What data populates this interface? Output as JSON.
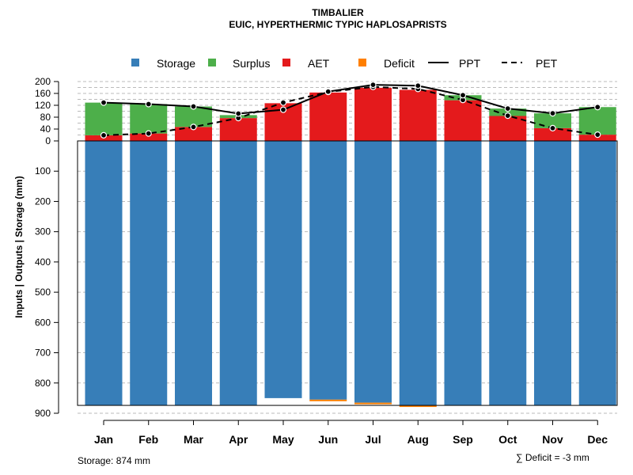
{
  "chart_data": {
    "type": "bar",
    "title": "TIMBALIER",
    "subtitle": "EUIC, HYPERTHERMIC TYPIC HAPLOSAPRISTS",
    "ylabel": "Inputs | Outputs | Storage    (mm)",
    "categories": [
      "Jan",
      "Feb",
      "Mar",
      "Apr",
      "May",
      "Jun",
      "Jul",
      "Aug",
      "Sep",
      "Oct",
      "Nov",
      "Dec"
    ],
    "upper_ticks": [
      "200",
      "160",
      "120",
      "80",
      "40",
      "0"
    ],
    "lower_ticks": [
      "100",
      "200",
      "300",
      "400",
      "500",
      "600",
      "700",
      "800",
      "900"
    ],
    "ylim_upper": [
      0,
      200
    ],
    "ylim_lower": [
      0,
      900
    ],
    "legend": {
      "storage": "Storage",
      "surplus": "Surplus",
      "aet": "AET",
      "deficit": "Deficit",
      "ppt": "PPT",
      "pet": "PET"
    },
    "colors": {
      "storage": "#377EB8",
      "surplus": "#4DAF4A",
      "aet": "#E41A1C",
      "deficit": "#FF7F00",
      "ppt": "#000000",
      "pet": "#000000"
    },
    "series": [
      {
        "name": "Storage",
        "values": [
          874,
          874,
          874,
          874,
          850,
          855,
          865,
          874,
          874,
          874,
          874,
          874
        ]
      },
      {
        "name": "AET",
        "values": [
          19,
          25,
          47,
          77,
          127,
          163,
          179,
          172,
          137,
          84,
          43,
          21
        ]
      },
      {
        "name": "Surplus",
        "values": [
          110,
          99,
          69,
          10,
          0,
          0,
          0,
          0,
          17,
          25,
          50,
          93
        ]
      },
      {
        "name": "Deficit",
        "values": [
          0,
          0,
          0,
          0,
          0,
          1,
          1,
          1,
          0,
          0,
          0,
          0
        ]
      },
      {
        "name": "PPT",
        "values": [
          129,
          124,
          116,
          92,
          105,
          166,
          189,
          186,
          154,
          109,
          93,
          114
        ]
      },
      {
        "name": "PET",
        "values": [
          19,
          25,
          47,
          77,
          129,
          165,
          182,
          175,
          138,
          85,
          43,
          21
        ]
      }
    ],
    "storage_note": "Storage: 874 mm",
    "deficit_note": "∑ Deficit = -3 mm"
  }
}
